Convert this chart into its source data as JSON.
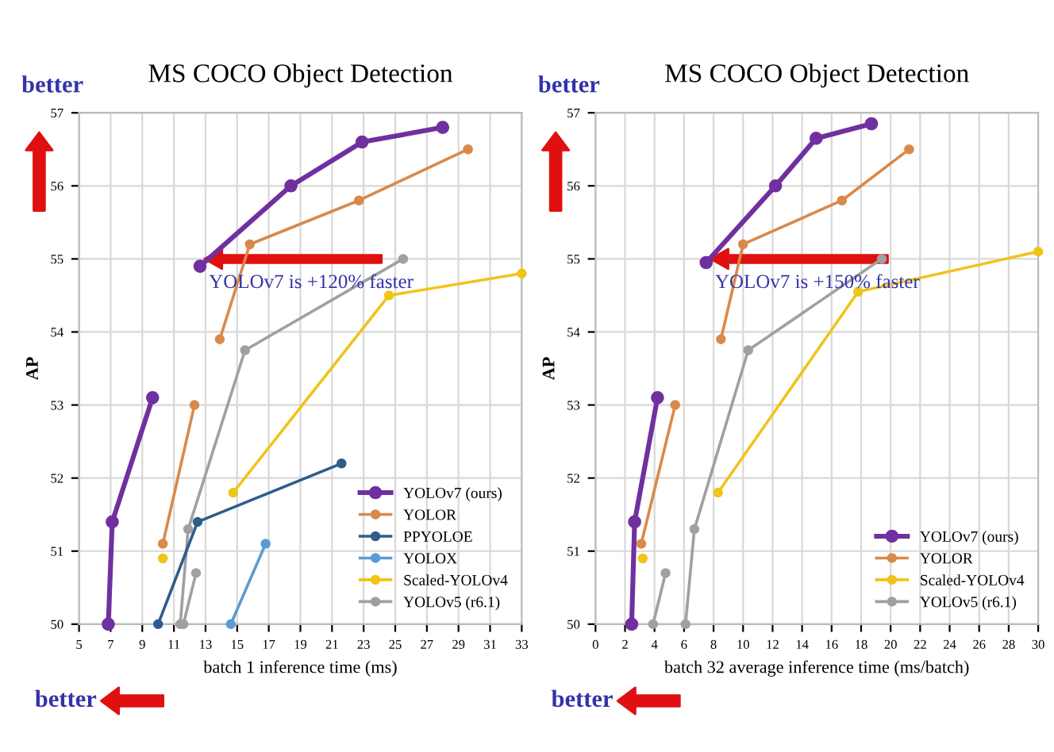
{
  "chart_data": [
    {
      "type": "line",
      "title": "MS COCO Object Detection",
      "xlabel": "batch 1 inference time (ms)",
      "ylabel": "AP",
      "xlim": [
        5,
        33
      ],
      "xticks": [
        5,
        7,
        9,
        11,
        13,
        15,
        17,
        19,
        21,
        23,
        25,
        27,
        29,
        31,
        33
      ],
      "ylim": [
        50,
        57
      ],
      "yticks": [
        50,
        51,
        52,
        53,
        54,
        55,
        56,
        57
      ],
      "grid": true,
      "legend": "bottom right",
      "marker": "circle",
      "annotations": [
        "better",
        "better",
        {
          "text": "YOLOv7 is +120% faster",
          "x": 12.65,
          "y": 55.0
        }
      ],
      "series": [
        {
          "name": "YOLOv7 (ours)",
          "color": "#7030a0",
          "x": [
            6.85,
            7.1,
            9.65,
            null,
            12.65,
            18.4,
            22.9,
            28.0
          ],
          "values": [
            50.0,
            51.4,
            53.1,
            null,
            54.9,
            56.0,
            56.6,
            56.8
          ]
        },
        {
          "name": "YOLOR",
          "color": "#d9894a",
          "x": [
            10.3,
            12.3,
            null,
            13.9,
            15.8,
            22.7,
            29.6
          ],
          "values": [
            51.1,
            53.0,
            null,
            53.9,
            55.2,
            55.8,
            56.5
          ]
        },
        {
          "name": "PPYOLOE",
          "color": "#2e5d8a",
          "x": [
            10.0,
            12.5,
            21.6
          ],
          "values": [
            50.0,
            51.4,
            52.2
          ]
        },
        {
          "name": "YOLOX",
          "color": "#5b9bd5",
          "x": [
            14.6,
            16.8
          ],
          "values": [
            50.0,
            51.1
          ]
        },
        {
          "name": "Scaled-YOLOv4",
          "color": "#f0c419",
          "x": [
            10.3,
            null,
            14.75,
            24.6,
            33.0
          ],
          "values": [
            50.9,
            null,
            51.8,
            54.5,
            54.8
          ]
        },
        {
          "name": "YOLOv5 (r6.1)",
          "color": "#a0a0a0",
          "x": [
            11.4,
            11.9,
            15.5,
            25.5,
            null,
            11.6,
            12.4
          ],
          "values": [
            50.0,
            51.3,
            53.75,
            55.0,
            null,
            50.0,
            50.7
          ]
        }
      ]
    },
    {
      "type": "line",
      "title": "MS COCO Object Detection",
      "xlabel": "batch 32 average inference time (ms/batch)",
      "ylabel": "AP",
      "xlim": [
        0,
        30
      ],
      "xticks": [
        0,
        2,
        4,
        6,
        8,
        10,
        12,
        14,
        16,
        18,
        20,
        22,
        24,
        26,
        28,
        30
      ],
      "ylim": [
        50,
        57
      ],
      "yticks": [
        50,
        51,
        52,
        53,
        54,
        55,
        56,
        57
      ],
      "grid": true,
      "legend": "bottom right",
      "marker": "circle",
      "annotations": [
        "better",
        "better",
        {
          "text": "YOLOv7 is +150% faster",
          "x": 7.5,
          "y": 55.0
        }
      ],
      "series": [
        {
          "name": "YOLOv7 (ours)",
          "color": "#7030a0",
          "x": [
            2.45,
            2.65,
            4.2,
            null,
            7.5,
            12.2,
            14.95,
            18.7
          ],
          "values": [
            50.0,
            51.4,
            53.1,
            null,
            54.95,
            56.0,
            56.65,
            56.85
          ]
        },
        {
          "name": "YOLOR",
          "color": "#d9894a",
          "x": [
            3.1,
            5.4,
            null,
            8.5,
            10.0,
            16.7,
            21.25
          ],
          "values": [
            51.1,
            53.0,
            null,
            53.9,
            55.2,
            55.8,
            56.5
          ]
        },
        {
          "name": "Scaled-YOLOv4",
          "color": "#f0c419",
          "x": [
            3.2,
            null,
            8.3,
            17.8,
            30.0
          ],
          "values": [
            50.9,
            null,
            51.8,
            54.55,
            55.1
          ]
        },
        {
          "name": "YOLOv5 (r6.1)",
          "color": "#a0a0a0",
          "x": [
            3.9,
            4.75,
            null,
            6.1,
            6.7,
            10.35,
            19.4
          ],
          "values": [
            50.0,
            50.7,
            null,
            50.0,
            51.3,
            53.75,
            55.0
          ]
        }
      ]
    }
  ]
}
